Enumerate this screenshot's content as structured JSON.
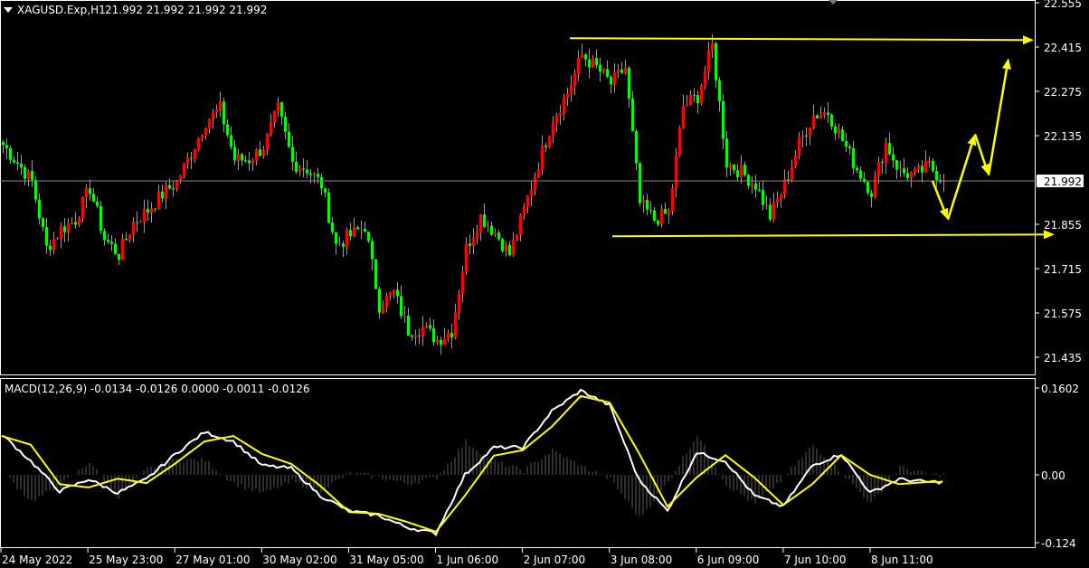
{
  "header": {
    "symbol_label": "XAGUSD.Exp,H1",
    "ohlc_label": "21.992 21.992 21.992 21.992",
    "menu_icon": "triangle-down-icon"
  },
  "indicator": {
    "label": "MACD(12,26,9) -0.0134 -0.0126 0.0000 -0.0011 -0.0126"
  },
  "colors": {
    "background": "#000000",
    "bull_candle": "#ff0000",
    "bear_candle": "#00ff00",
    "wick": "#9a9a9a",
    "annotation": "#ffff00",
    "macd_main": "#ffffff",
    "macd_signal": "#ffff00",
    "macd_histogram": "#5a5a5a",
    "axis": "#ffffff"
  },
  "chart_data": [
    {
      "type": "candlestick",
      "title": "XAGUSD.Exp,H1",
      "timeframe": "H1",
      "ylim": [
        21.43,
        22.56
      ],
      "y_ticks": [
        "22.555",
        "22.415",
        "22.275",
        "22.135",
        "21.992",
        "21.855",
        "21.715",
        "21.575",
        "21.435"
      ],
      "y_tick_values": [
        22.555,
        22.415,
        22.275,
        22.135,
        21.992,
        21.855,
        21.715,
        21.575,
        21.435
      ],
      "current_price": "21.992",
      "close_every_4_bars": [
        22.106,
        22.05,
        21.99,
        21.78,
        21.84,
        21.87,
        21.97,
        21.81,
        21.76,
        21.86,
        21.9,
        21.95,
        21.99,
        22.08,
        22.18,
        22.22,
        22.06,
        22.06,
        22.1,
        22.22,
        22.05,
        22.03,
        21.98,
        21.79,
        21.82,
        21.85,
        21.6,
        21.64,
        21.52,
        21.53,
        21.49,
        21.52,
        21.78,
        21.88,
        21.83,
        21.76,
        21.9,
        22.05,
        22.19,
        22.27,
        22.39,
        22.35,
        22.3,
        22.35,
        21.92,
        21.87,
        21.89,
        22.23,
        22.26,
        22.42,
        22.05,
        22.02,
        21.98,
        21.88,
        21.98,
        22.11,
        22.2,
        22.21,
        22.12,
        22.03,
        21.96,
        22.11,
        22.02,
        22.01,
        22.04,
        21.992
      ],
      "annotations": {
        "resistance_line": 22.44,
        "support_line": 21.82,
        "projected_path": [
          21.992,
          21.87,
          22.14,
          22.01,
          22.38
        ]
      },
      "x_ticks": [
        "24 May 2022",
        "25 May 23:00",
        "27 May 01:00",
        "30 May 02:00",
        "31 May 05:00",
        "1 Jun 06:00",
        "2 Jun 07:00",
        "3 Jun 08:00",
        "6 Jun 09:00",
        "7 Jun 10:00",
        "8 Jun 11:00"
      ]
    },
    {
      "type": "line",
      "title": "MACD(12,26,9)",
      "ylim": [
        -0.132,
        0.1602
      ],
      "y_ticks": [
        "0.1602",
        "0.00",
        "-0.124"
      ],
      "y_tick_values": [
        0.1602,
        0.0,
        -0.124
      ],
      "series": [
        {
          "role": "main",
          "values_every_8_bars": [
            0.074,
            0.025,
            -0.03,
            -0.008,
            -0.033,
            -0.008,
            0.038,
            0.078,
            0.061,
            0.017,
            0.012,
            -0.038,
            -0.066,
            -0.074,
            -0.096,
            -0.107,
            0.0,
            0.05,
            0.05,
            0.116,
            0.154,
            0.127,
            -0.008,
            -0.066,
            0.041,
            0.025,
            -0.038,
            -0.058,
            0.017,
            0.038,
            -0.033,
            -0.008,
            -0.013
          ]
        },
        {
          "role": "signal",
          "values_every_8_bars": [
            0.071,
            0.055,
            -0.017,
            -0.023,
            -0.007,
            -0.015,
            0.021,
            0.061,
            0.071,
            0.038,
            0.02,
            -0.02,
            -0.068,
            -0.071,
            -0.086,
            -0.104,
            -0.038,
            0.035,
            0.045,
            0.088,
            0.144,
            0.132,
            0.041,
            -0.058,
            -0.005,
            0.036,
            -0.005,
            -0.055,
            -0.017,
            0.036,
            0.0,
            -0.017,
            -0.013
          ]
        }
      ]
    }
  ]
}
